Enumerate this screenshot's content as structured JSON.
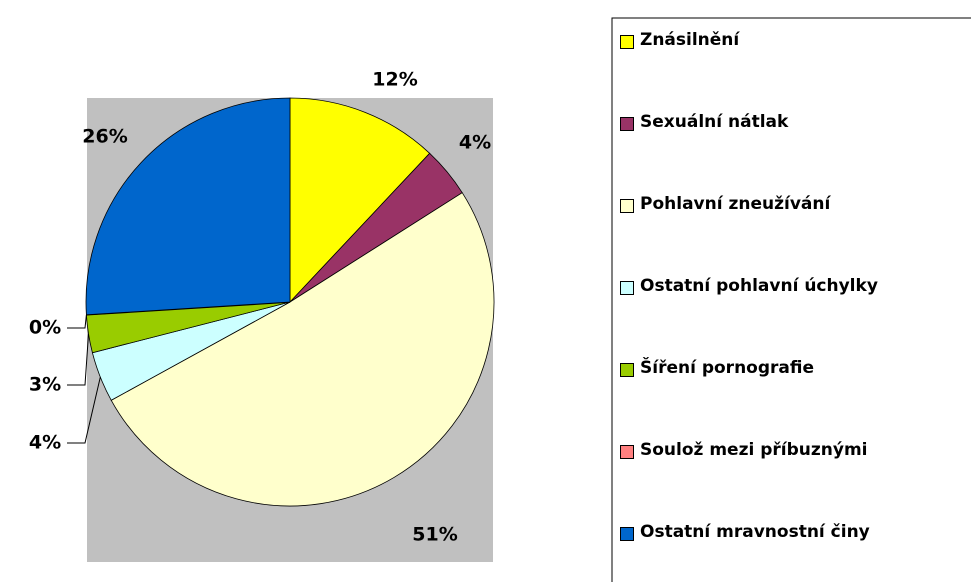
{
  "chart_data": {
    "type": "pie",
    "categories": [
      "Znásilnění",
      "Sexuální nátlak",
      "Pohlavní zneužívání",
      "Ostatní pohlavní úchylky",
      "Šíření pornografie",
      "Soulož mezi příbuznými",
      "Ostatní mravnostní činy"
    ],
    "values": [
      12,
      4,
      51,
      4,
      3,
      0,
      26
    ],
    "value_labels": [
      "12%",
      "4%",
      "51%",
      "4%",
      "3%",
      "0%",
      "26%"
    ],
    "colors": [
      "#ffff00",
      "#993366",
      "#ffffcc",
      "#ccffff",
      "#99cc00",
      "#ff8080",
      "#0066cc"
    ]
  }
}
